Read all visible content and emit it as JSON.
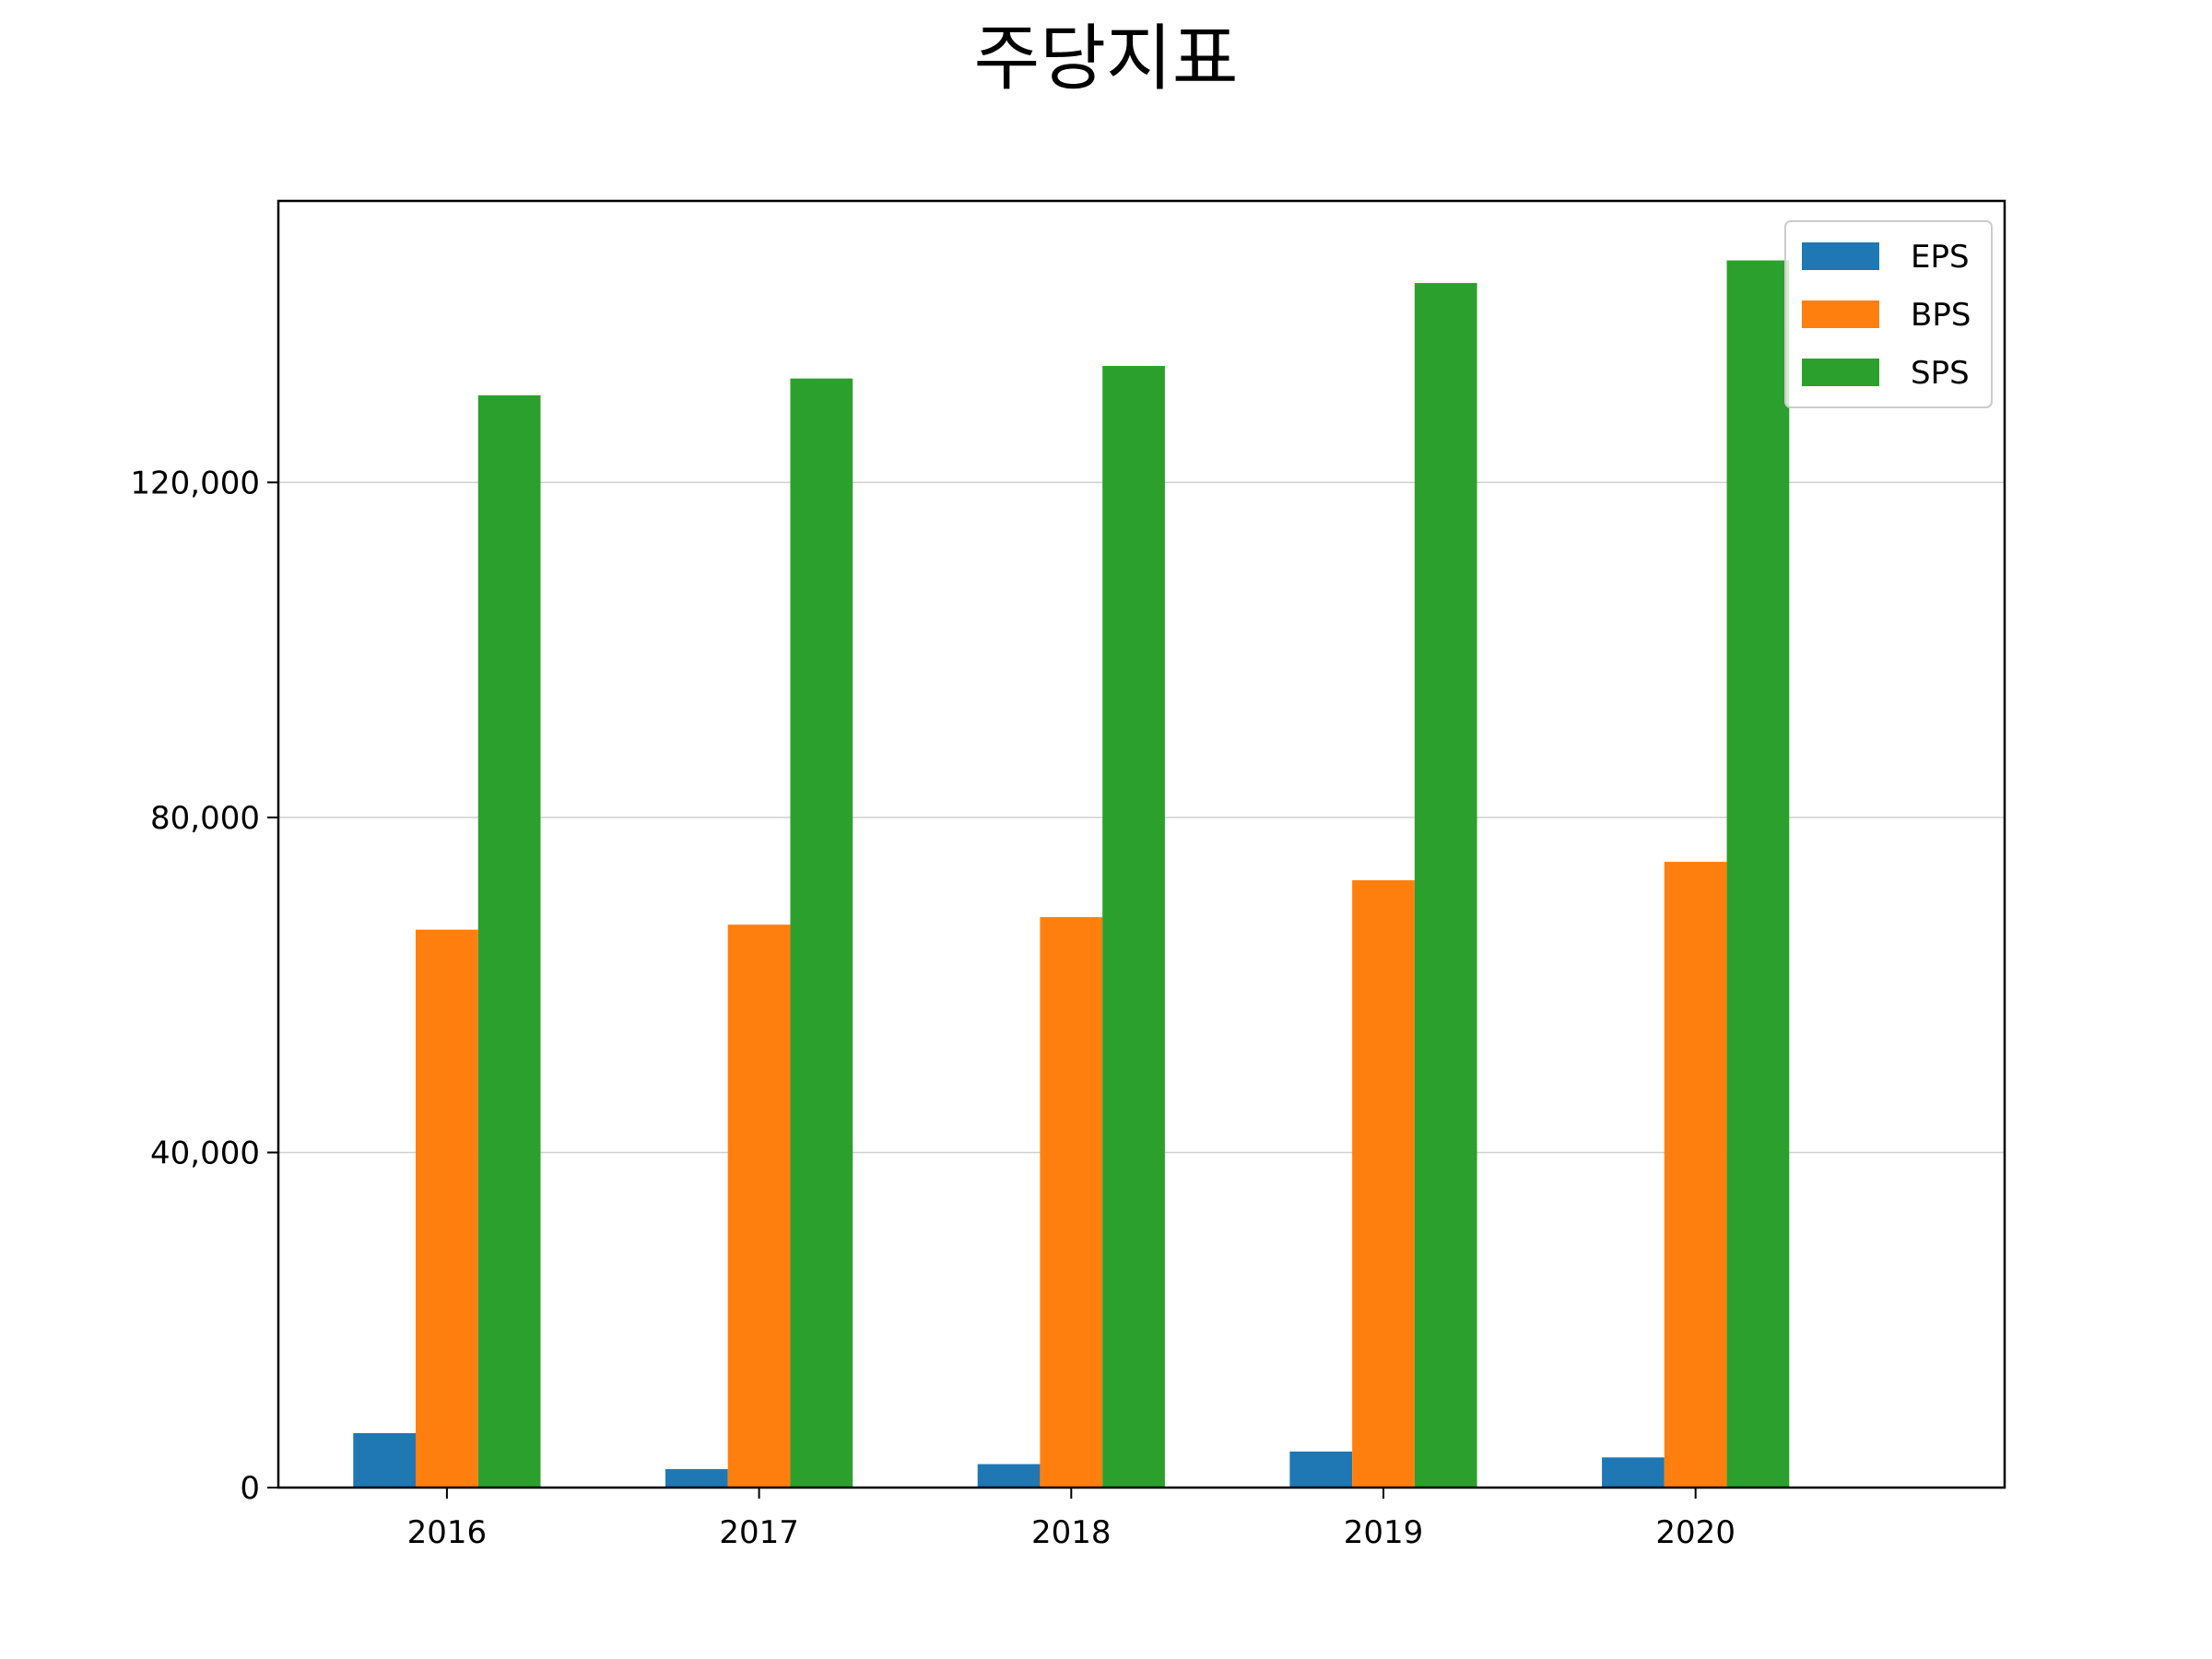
{
  "chart_data": {
    "type": "bar",
    "title": "주당지표",
    "xlabel": "",
    "ylabel": "",
    "categories": [
      "2016",
      "2017",
      "2018",
      "2019",
      "2020"
    ],
    "series": [
      {
        "name": "EPS",
        "color": "#1f77b4",
        "values": [
          6500,
          2200,
          2800,
          4300,
          3600
        ]
      },
      {
        "name": "BPS",
        "color": "#ff7f0e",
        "values": [
          66600,
          67200,
          68100,
          72500,
          74700
        ]
      },
      {
        "name": "SPS",
        "color": "#2ca02c",
        "values": [
          130400,
          132400,
          133900,
          143800,
          146500
        ]
      }
    ],
    "ylim": [
      0,
      153600
    ],
    "yticks": [
      0,
      40000,
      80000,
      120000
    ],
    "ytick_labels": [
      "0",
      "40,000",
      "80,000",
      "120,000"
    ],
    "grid": "y",
    "legend": "top-right"
  }
}
